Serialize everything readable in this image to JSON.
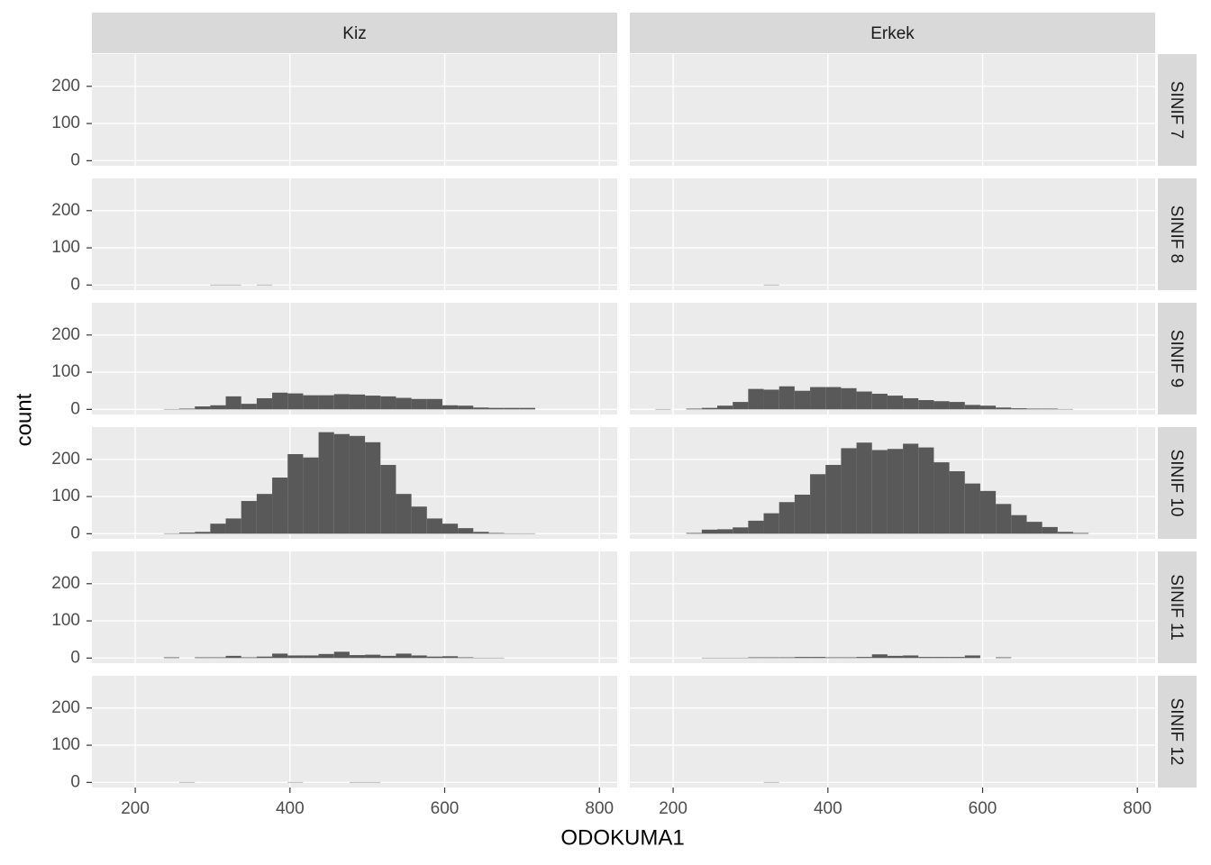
{
  "chart_data": {
    "type": "histogram",
    "x_label": "ODOKUMA1",
    "y_label": "count",
    "columns": [
      "Kiz",
      "Erkek"
    ],
    "rows": [
      "SINIF 7",
      "SINIF 8",
      "SINIF 9",
      "SINIF 10",
      "SINIF 11",
      "SINIF 12"
    ],
    "bins": [
      177,
      197,
      217,
      237,
      257,
      277,
      297,
      317,
      337,
      357,
      377,
      397,
      417,
      437,
      457,
      477,
      497,
      517,
      537,
      557,
      577,
      597,
      617,
      637,
      657,
      677,
      697,
      717,
      737
    ],
    "values": [
      [
        [
          0,
          0,
          0,
          0,
          0,
          0,
          0,
          0,
          0,
          0,
          0,
          0,
          0,
          0,
          0,
          0,
          0,
          0,
          0,
          0,
          0,
          0,
          0,
          0,
          0,
          0,
          0,
          0
        ],
        [
          0,
          0,
          0,
          0,
          0,
          0,
          0,
          0,
          0,
          0,
          0,
          0,
          0,
          0,
          0,
          0,
          0,
          0,
          0,
          0,
          0,
          0,
          0,
          0,
          0,
          0,
          0,
          0
        ]
      ],
      [
        [
          0,
          0,
          0,
          0,
          0,
          0,
          1,
          1,
          0,
          1,
          0,
          0,
          0,
          0,
          0,
          0,
          0,
          0,
          0,
          0,
          0,
          0,
          0,
          0,
          0,
          0,
          0,
          0
        ],
        [
          0,
          0,
          0,
          0,
          0,
          0,
          0,
          1,
          0,
          0,
          0,
          0,
          0,
          0,
          0,
          0,
          0,
          0,
          0,
          0,
          0,
          0,
          0,
          0,
          0,
          0,
          0,
          0
        ]
      ],
      [
        [
          0,
          0,
          0,
          1,
          2,
          8,
          11,
          35,
          15,
          30,
          45,
          43,
          38,
          38,
          41,
          40,
          37,
          35,
          31,
          28,
          28,
          11,
          10,
          5,
          4,
          4,
          4,
          0
        ],
        [
          1,
          0,
          2,
          4,
          10,
          20,
          55,
          53,
          62,
          50,
          60,
          60,
          57,
          48,
          42,
          37,
          30,
          25,
          22,
          20,
          12,
          10,
          5,
          3,
          2,
          2,
          1,
          0
        ]
      ],
      [
        [
          0,
          0,
          0,
          1,
          3,
          5,
          27,
          41,
          88,
          107,
          151,
          214,
          205,
          273,
          268,
          263,
          246,
          185,
          107,
          73,
          41,
          27,
          15,
          5,
          2,
          1,
          1,
          0
        ],
        [
          0,
          0,
          2,
          11,
          12,
          17,
          35,
          55,
          85,
          105,
          160,
          185,
          230,
          245,
          225,
          228,
          242,
          232,
          192,
          168,
          135,
          115,
          80,
          50,
          32,
          18,
          5,
          2
        ]
      ],
      [
        [
          0,
          0,
          0,
          2,
          0,
          2,
          2,
          6,
          2,
          4,
          12,
          7,
          7,
          11,
          17,
          8,
          9,
          6,
          12,
          7,
          4,
          5,
          2,
          1,
          1,
          0,
          0,
          0
        ],
        [
          0,
          0,
          0,
          1,
          1,
          1,
          2,
          2,
          2,
          3,
          3,
          2,
          2,
          3,
          10,
          6,
          7,
          3,
          3,
          3,
          7,
          0,
          2,
          0,
          0,
          0,
          0,
          0
        ]
      ],
      [
        [
          0,
          0,
          0,
          0,
          1,
          0,
          0,
          0,
          0,
          0,
          0,
          1,
          0,
          0,
          0,
          1,
          1,
          0,
          0,
          0,
          0,
          0,
          0,
          0,
          0,
          0,
          0,
          0
        ],
        [
          0,
          0,
          0,
          0,
          0,
          0,
          0,
          1,
          0,
          0,
          0,
          0,
          0,
          0,
          0,
          0,
          0,
          0,
          0,
          0,
          0,
          0,
          0,
          0,
          0,
          0,
          0,
          0
        ]
      ]
    ],
    "color": "#595959",
    "xlim": [
      144,
      823
    ],
    "xticks": [
      200,
      400,
      600,
      800
    ],
    "ylim": [
      -13.7,
      286.7
    ],
    "yticks": [
      0,
      100,
      200
    ],
    "grid": true
  }
}
